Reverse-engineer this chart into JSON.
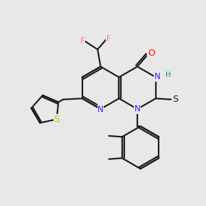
{
  "bg_color": "#e8e8e8",
  "bond_color": "#1a1a1a",
  "lw": 1.6,
  "atom_colors": {
    "F": "#ff69b4",
    "O": "#ff0000",
    "N": "#2020ff",
    "H": "#008b8b",
    "S_thio": "#cccc00",
    "S_thione": "#1a1a1a",
    "C": "#1a1a1a"
  },
  "fs": 8.5
}
